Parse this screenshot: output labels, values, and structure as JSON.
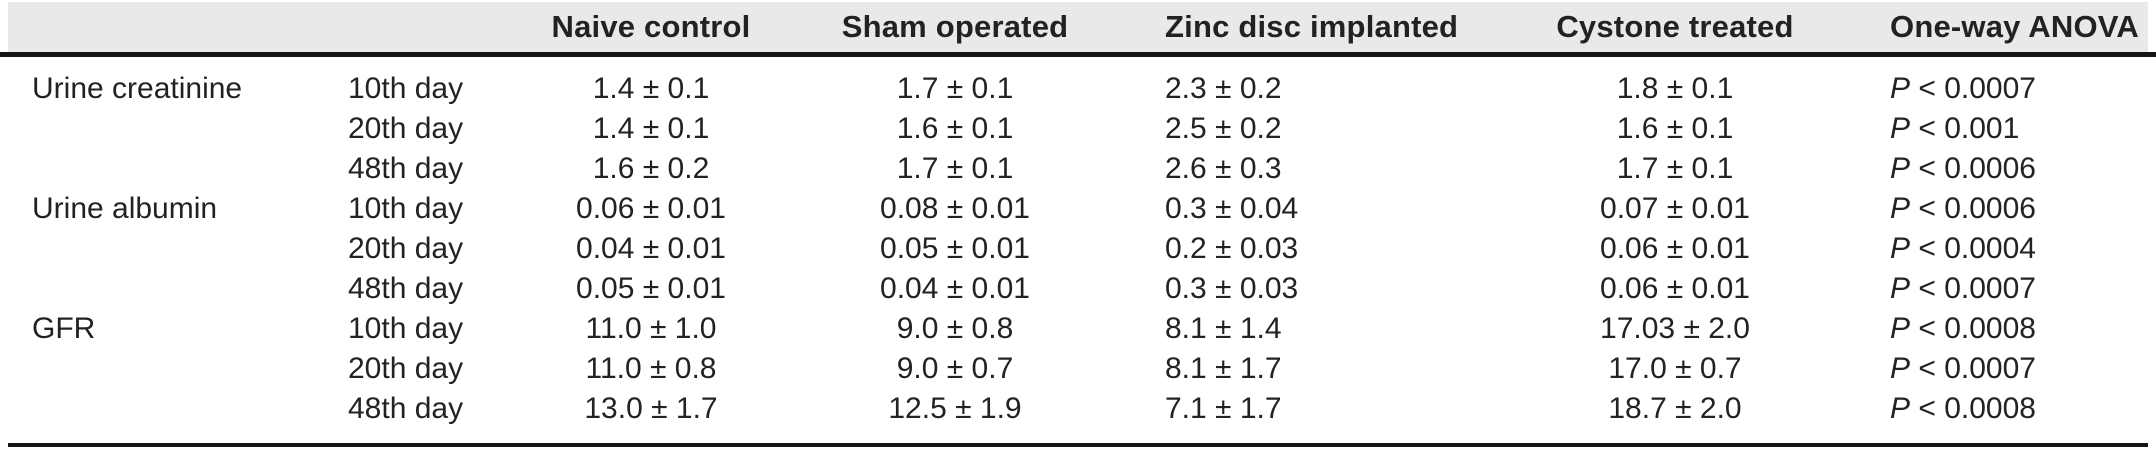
{
  "table": {
    "headers": {
      "parameter": "",
      "day": "",
      "naive_control": "Naive control",
      "sham_operated": "Sham operated",
      "zinc_disc_implanted": "Zinc disc implanted",
      "cystone_treated": "Cystone treated",
      "one_way_anova": "One-way ANOVA"
    },
    "rows": [
      {
        "parameter": "Urine creatinine",
        "day": "10th day",
        "naive_control": "1.4 ± 0.1",
        "sham_operated": "1.7 ± 0.1",
        "zinc_disc_implanted": "2.3 ± 0.2",
        "cystone_treated": "1.8 ± 0.1",
        "one_way_anova": "P < 0.0007"
      },
      {
        "parameter": "",
        "day": "20th day",
        "naive_control": "1.4 ± 0.1",
        "sham_operated": "1.6 ± 0.1",
        "zinc_disc_implanted": "2.5 ± 0.2",
        "cystone_treated": "1.6 ± 0.1",
        "one_way_anova": "P < 0.001"
      },
      {
        "parameter": "",
        "day": "48th day",
        "naive_control": "1.6 ± 0.2",
        "sham_operated": "1.7 ± 0.1",
        "zinc_disc_implanted": "2.6 ± 0.3",
        "cystone_treated": "1.7 ± 0.1",
        "one_way_anova": "P < 0.0006"
      },
      {
        "parameter": "Urine albumin",
        "day": "10th day",
        "naive_control": "0.06 ± 0.01",
        "sham_operated": "0.08 ± 0.01",
        "zinc_disc_implanted": "0.3 ± 0.04",
        "cystone_treated": "0.07 ± 0.01",
        "one_way_anova": "P < 0.0006"
      },
      {
        "parameter": "",
        "day": "20th day",
        "naive_control": "0.04 ± 0.01",
        "sham_operated": "0.05 ± 0.01",
        "zinc_disc_implanted": "0.2 ± 0.03",
        "cystone_treated": "0.06 ± 0.01",
        "one_way_anova": "P < 0.0004"
      },
      {
        "parameter": "",
        "day": "48th day",
        "naive_control": "0.05 ± 0.01",
        "sham_operated": "0.04 ± 0.01",
        "zinc_disc_implanted": "0.3 ± 0.03",
        "cystone_treated": "0.06 ± 0.01",
        "one_way_anova": "P < 0.0007"
      },
      {
        "parameter": "GFR",
        "day": "10th day",
        "naive_control": "11.0 ± 1.0",
        "sham_operated": "9.0 ± 0.8",
        "zinc_disc_implanted": "8.1 ± 1.4",
        "cystone_treated": "17.03 ± 2.0",
        "one_way_anova": "P < 0.0008"
      },
      {
        "parameter": "",
        "day": "20th day",
        "naive_control": "11.0 ± 0.8",
        "sham_operated": "9.0 ± 0.7",
        "zinc_disc_implanted": "8.1 ± 1.7",
        "cystone_treated": "17.0 ± 0.7",
        "one_way_anova": "P < 0.0007"
      },
      {
        "parameter": "",
        "day": "48th day",
        "naive_control": "13.0 ± 1.7",
        "sham_operated": "12.5 ± 1.9",
        "zinc_disc_implanted": "7.1 ± 1.7",
        "cystone_treated": "18.7 ± 2.0",
        "one_way_anova": "P < 0.0008"
      }
    ],
    "colors": {
      "header_background": "#e9e9e7",
      "rule": "#161514",
      "text": "#242221"
    }
  }
}
